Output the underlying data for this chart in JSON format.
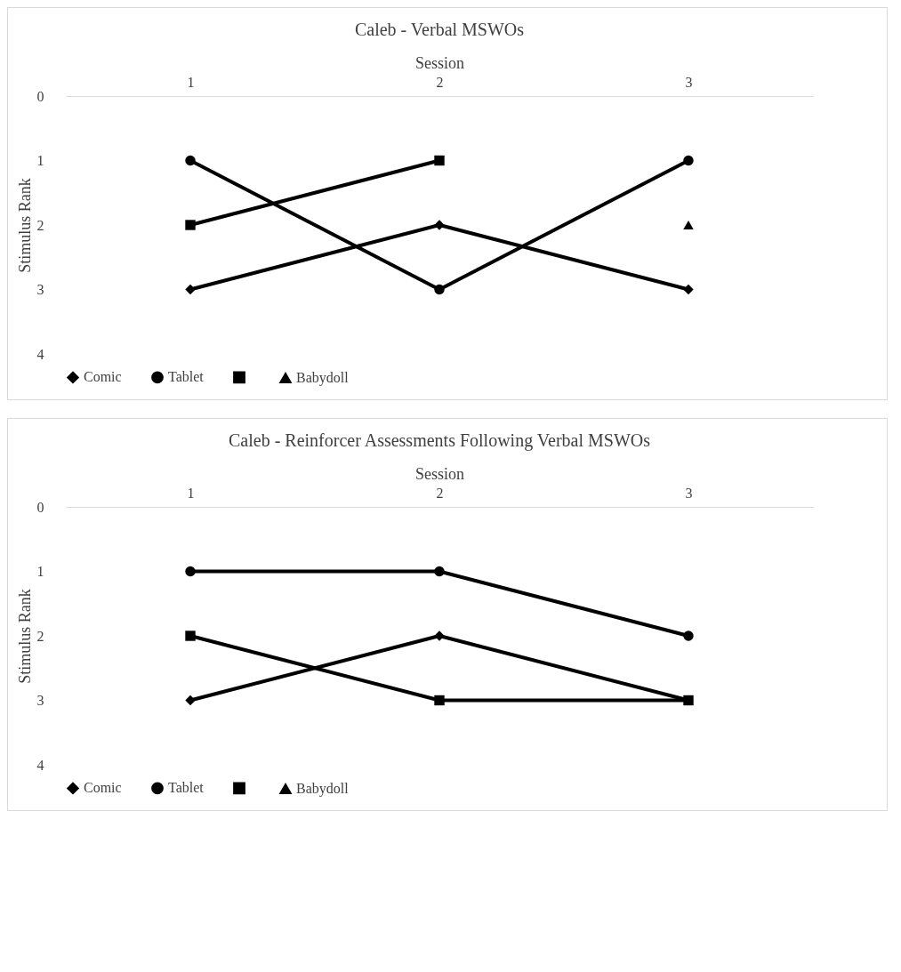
{
  "chart_data": [
    {
      "type": "line",
      "title": "Caleb - Verbal MSWOs",
      "xlabel": "Session",
      "ylabel": "Stimulus Rank",
      "categories": [
        "1",
        "2",
        "3"
      ],
      "ylim": [
        4,
        0
      ],
      "yticks": [
        0,
        1,
        2,
        3,
        4
      ],
      "legend": "bottom",
      "grid": false,
      "series": [
        {
          "name": "Comic",
          "color": "#000000",
          "marker": "diamond",
          "values": [
            3,
            2,
            3
          ]
        },
        {
          "name": "Tablet",
          "color": "#000000",
          "marker": "circle",
          "values": [
            1,
            3,
            1
          ]
        },
        {
          "color": "#000000",
          "marker": "square",
          "values": [
            2,
            1,
            null
          ]
        },
        {
          "name": "Babydoll",
          "color": "#000000",
          "marker": "triangle",
          "values": [
            null,
            null,
            2
          ]
        }
      ]
    },
    {
      "type": "line",
      "title": "Caleb - Reinforcer Assessments Following Verbal MSWOs",
      "xlabel": "Session",
      "ylabel": "Stimulus Rank",
      "categories": [
        "1",
        "2",
        "3"
      ],
      "ylim": [
        4,
        0
      ],
      "yticks": [
        0,
        1,
        2,
        3,
        4
      ],
      "legend": "bottom",
      "grid": false,
      "series": [
        {
          "name": "Comic",
          "color": "#000000",
          "marker": "diamond",
          "values": [
            3,
            2,
            3
          ]
        },
        {
          "name": "Tablet",
          "color": "#000000",
          "marker": "circle",
          "values": [
            1,
            1,
            2
          ]
        },
        {
          "color": "#000000",
          "marker": "square",
          "values": [
            2,
            3,
            3
          ]
        },
        {
          "name": "Babydoll",
          "color": "#000000",
          "marker": "triangle",
          "values": [
            null,
            null,
            null
          ]
        }
      ]
    }
  ]
}
